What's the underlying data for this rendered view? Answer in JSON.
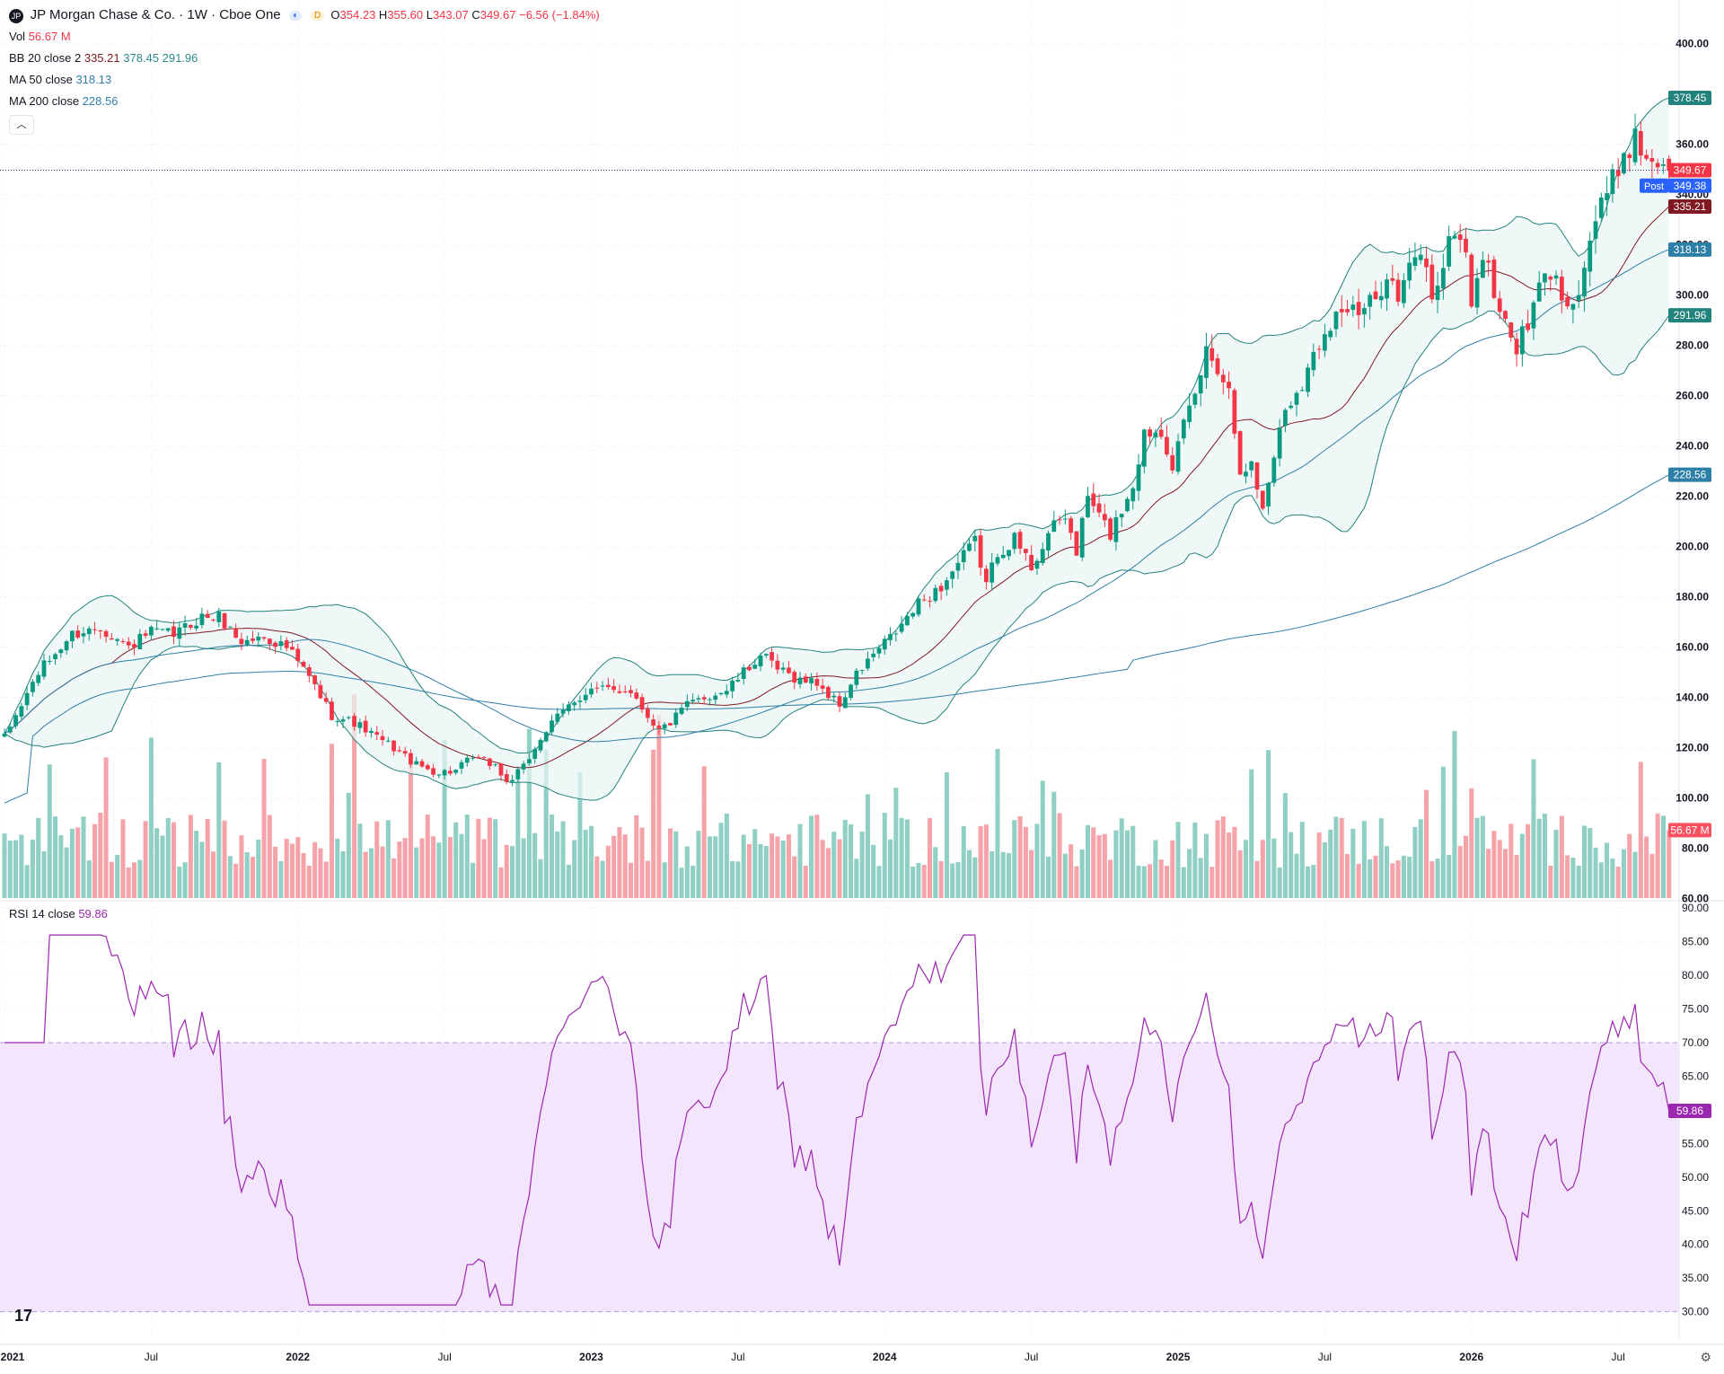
{
  "header": {
    "symbol_icon": "JP",
    "title": "JP Morgan Chase & Co. · 1W · Cboe One",
    "open_label": "O",
    "open": "354.23",
    "high_label": "H",
    "high": "355.60",
    "low_label": "L",
    "low": "343.07",
    "close_label": "C",
    "close": "349.67",
    "change": "−6.56 (−1.84%)",
    "session_badge": "D"
  },
  "indicators": {
    "vol_label": "Vol",
    "vol_value": "56.67 M",
    "bb_label": "BB 20 close 2",
    "bb_basis": "335.21",
    "bb_upper": "378.45",
    "bb_lower": "291.96",
    "ma50_label": "MA 50 close",
    "ma50_value": "318.13",
    "ma200_label": "MA 200 close",
    "ma200_value": "228.56",
    "collapse_icon": "chevron-up-icon",
    "rsi_label": "RSI 14 close",
    "rsi_value": "59.86"
  },
  "price_axis": {
    "ticks": [
      "400.00",
      "360.00",
      "340.00",
      "320.00",
      "300.00",
      "280.00",
      "260.00",
      "240.00",
      "220.00",
      "200.00",
      "180.00",
      "160.00",
      "140.00",
      "120.00",
      "100.00",
      "80.00",
      "60.00"
    ],
    "tick_values": [
      400,
      360,
      340,
      320,
      300,
      280,
      260,
      240,
      220,
      200,
      180,
      160,
      140,
      120,
      100,
      80,
      60
    ],
    "tags": [
      {
        "label": "378.45",
        "value": 378.45,
        "color": "#22827c"
      },
      {
        "label": "349.67",
        "value": 349.67,
        "color": "#f23645"
      },
      {
        "label": "349.38",
        "value": 343.5,
        "color": "#2962ff",
        "prefix": "Post"
      },
      {
        "label": "335.21",
        "value": 335.21,
        "color": "#801922"
      },
      {
        "label": "318.13",
        "value": 318.13,
        "color": "#2e7fa7"
      },
      {
        "label": "291.96",
        "value": 291.96,
        "color": "#22827c"
      },
      {
        "label": "228.56",
        "value": 228.56,
        "color": "#2e7fa7"
      },
      {
        "label": "56.67 M",
        "value": 87,
        "color": "#f7525f"
      }
    ]
  },
  "rsi_axis": {
    "ticks": [
      "90.00",
      "85.00",
      "80.00",
      "75.00",
      "70.00",
      "65.00",
      "60.00",
      "55.00",
      "50.00",
      "45.00",
      "40.00",
      "35.00",
      "30.00"
    ],
    "tick_values": [
      90,
      85,
      80,
      75,
      70,
      65,
      60,
      55,
      50,
      45,
      40,
      35,
      30
    ],
    "tag": {
      "label": "59.86",
      "value": 59.86,
      "color": "#9c27b0"
    }
  },
  "time_axis": {
    "labels": [
      "2021",
      "Jul",
      "2022",
      "Jul",
      "2023",
      "Jul",
      "2024",
      "Jul",
      "2025",
      "Jul",
      "2026",
      "Jul"
    ],
    "label_weeks": [
      0,
      26,
      52,
      78,
      104,
      130,
      156,
      182,
      208,
      234,
      260,
      286
    ]
  },
  "chart_data": {
    "type": "candlestick",
    "interval": "1W",
    "price_range": [
      60,
      400
    ],
    "rsi_range": [
      30,
      90
    ],
    "rsi_bands": [
      30,
      70
    ],
    "anchors": [
      [
        0,
        124
      ],
      [
        6,
        150
      ],
      [
        12,
        165
      ],
      [
        17,
        168
      ],
      [
        22,
        160
      ],
      [
        26,
        166
      ],
      [
        30,
        165
      ],
      [
        35,
        172
      ],
      [
        38,
        172
      ],
      [
        42,
        162
      ],
      [
        46,
        164
      ],
      [
        50,
        160
      ],
      [
        54,
        148
      ],
      [
        58,
        133
      ],
      [
        62,
        130
      ],
      [
        66,
        124
      ],
      [
        69,
        120
      ],
      [
        73,
        113
      ],
      [
        77,
        110
      ],
      [
        80,
        111
      ],
      [
        83,
        116
      ],
      [
        87,
        113
      ],
      [
        89,
        106
      ],
      [
        92,
        112
      ],
      [
        95,
        124
      ],
      [
        98,
        132
      ],
      [
        101,
        139
      ],
      [
        104,
        143
      ],
      [
        107,
        143
      ],
      [
        111,
        143
      ],
      [
        113,
        136
      ],
      [
        116,
        127
      ],
      [
        118,
        130
      ],
      [
        121,
        137
      ],
      [
        124,
        140
      ],
      [
        128,
        143
      ],
      [
        132,
        152
      ],
      [
        134,
        157
      ],
      [
        137,
        151
      ],
      [
        141,
        147
      ],
      [
        144,
        146
      ],
      [
        146,
        141
      ],
      [
        148,
        137
      ],
      [
        151,
        149
      ],
      [
        154,
        157
      ],
      [
        158,
        166
      ],
      [
        162,
        177
      ],
      [
        166,
        184
      ],
      [
        170,
        196
      ],
      [
        172,
        202
      ],
      [
        174,
        185
      ],
      [
        176,
        198
      ],
      [
        179,
        203
      ],
      [
        182,
        192
      ],
      [
        185,
        205
      ],
      [
        188,
        212
      ],
      [
        190,
        198
      ],
      [
        192,
        220
      ],
      [
        194,
        212
      ],
      [
        196,
        205
      ],
      [
        198,
        215
      ],
      [
        200,
        225
      ],
      [
        202,
        245
      ],
      [
        205,
        247
      ],
      [
        207,
        233
      ],
      [
        209,
        247
      ],
      [
        211,
        260
      ],
      [
        213,
        278
      ],
      [
        215,
        272
      ],
      [
        217,
        262
      ],
      [
        219,
        232
      ],
      [
        221,
        232
      ],
      [
        223,
        215
      ],
      [
        225,
        237
      ],
      [
        227,
        255
      ],
      [
        229,
        262
      ],
      [
        231,
        270
      ],
      [
        234,
        287
      ],
      [
        237,
        295
      ],
      [
        240,
        292
      ],
      [
        243,
        298
      ],
      [
        245,
        310
      ],
      [
        247,
        298
      ],
      [
        249,
        310
      ],
      [
        251,
        318
      ],
      [
        253,
        300
      ],
      [
        255,
        312
      ],
      [
        257,
        327
      ],
      [
        259,
        316
      ],
      [
        260,
        298
      ],
      [
        262,
        316
      ],
      [
        264,
        302
      ],
      [
        266,
        287
      ],
      [
        268,
        280
      ],
      [
        270,
        287
      ],
      [
        272,
        303
      ],
      [
        274,
        309
      ],
      [
        276,
        300
      ],
      [
        279,
        300
      ],
      [
        281,
        323
      ],
      [
        283,
        335
      ],
      [
        285,
        345
      ],
      [
        287,
        357
      ],
      [
        289,
        362
      ],
      [
        291,
        355
      ],
      [
        294,
        353
      ],
      [
        295,
        349.67
      ]
    ],
    "last": {
      "open": 354.23,
      "high": 355.6,
      "low": 343.07,
      "close": 349.67,
      "change": -6.56,
      "change_pct": -1.84
    },
    "volume_range": [
      60,
      160
    ],
    "last_volume": "56.67 M",
    "bollinger": {
      "length": 20,
      "mult": 2,
      "basis": 335.21,
      "upper": 378.45,
      "lower": 291.96
    },
    "ma50": 318.13,
    "ma200": 228.56,
    "rsi_last": 59.86,
    "colors": {
      "up": "#089981",
      "down": "#f23645",
      "vol_up": "#8fcfc4",
      "vol_down": "#f5a3a9",
      "bb_line": "#22827c",
      "bb_fill": "#e9f5f4",
      "bb_basis": "#801922",
      "ma50": "#2e7fa7",
      "ma200": "#2e7fa7",
      "rsi": "#9c27b0",
      "rsi_fill": "#f3e5fc",
      "price_line": "#4a2fa0"
    }
  }
}
